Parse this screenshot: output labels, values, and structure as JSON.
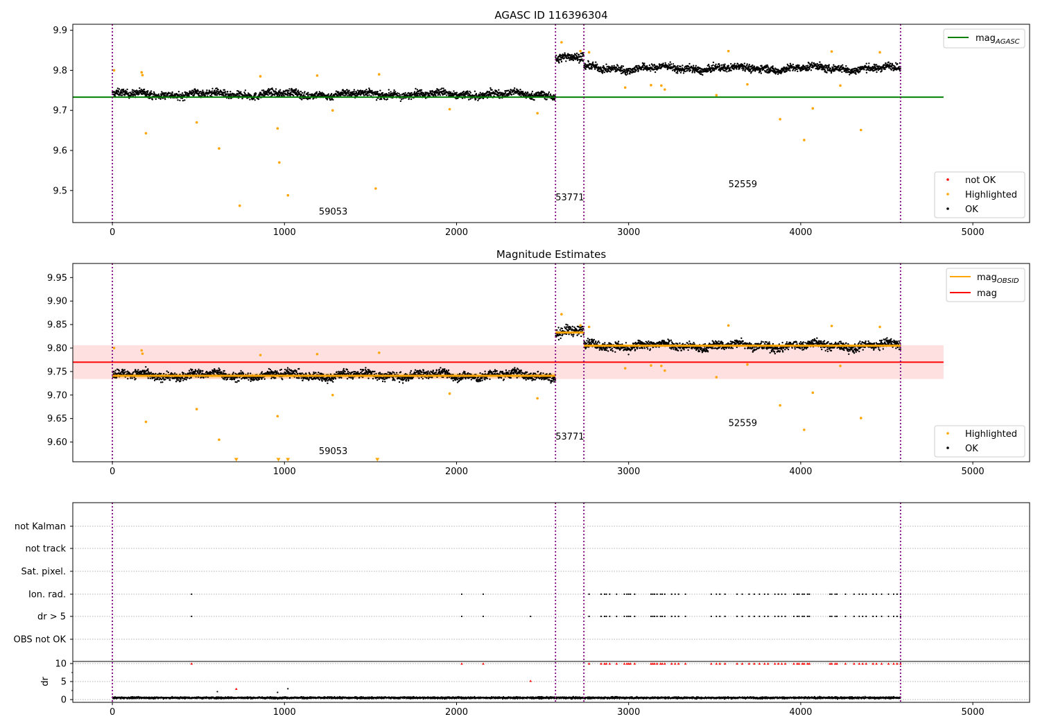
{
  "chart_data": [
    {
      "type": "scatter",
      "title": "AGASC ID 116396304",
      "xlim": [
        -230,
        5330
      ],
      "ylim": [
        9.42,
        9.915
      ],
      "xticks": [
        0,
        1000,
        2000,
        3000,
        4000,
        5000
      ],
      "xtick_labels": [
        "0",
        "1000",
        "2000",
        "3000",
        "4000",
        "5000"
      ],
      "yticks": [
        9.5,
        9.6,
        9.7,
        9.8,
        9.9
      ],
      "ytick_labels": [
        "9.5",
        "9.6",
        "9.7",
        "9.8",
        "9.9"
      ],
      "obsid_boundaries": [
        0,
        2575,
        2740,
        4580
      ],
      "annotations": [
        {
          "text": "59053",
          "x": 1200,
          "y": 9.44
        },
        {
          "text": "53771",
          "x": 2575,
          "y": 9.475
        },
        {
          "text": "52559",
          "x": 3580,
          "y": 9.508
        }
      ],
      "lines": [
        {
          "name": "mag",
          "subscript": "AGASC",
          "color": "#008000",
          "segments": [
            {
              "x": [
                -230,
                4830
              ],
              "y": 9.733
            }
          ]
        }
      ],
      "scatter_legend": [
        {
          "name": "not OK",
          "color": "#ff0000"
        },
        {
          "name": "Highlighted",
          "color": "#ffa500"
        },
        {
          "name": "OK",
          "color": "#000000"
        }
      ],
      "ok_series": {
        "color": "#000000",
        "segments": [
          {
            "x0": 0,
            "x1": 2575,
            "y": 9.74,
            "spread": 0.012
          },
          {
            "x0": 2575,
            "x1": 2740,
            "y": 9.832,
            "spread": 0.014
          },
          {
            "x0": 2740,
            "x1": 4580,
            "y": 9.805,
            "spread": 0.012
          }
        ]
      },
      "highlighted_points": {
        "color": "#ffa500",
        "x": [
          10,
          170,
          175,
          195,
          490,
          620,
          740,
          860,
          960,
          970,
          1020,
          1190,
          1280,
          1530,
          1550,
          1960,
          2470,
          2610,
          2720,
          2770,
          2980,
          3130,
          3190,
          3210,
          3510,
          3580,
          3690,
          3880,
          4020,
          4070,
          4180,
          4230,
          4350,
          4460
        ],
        "y": [
          9.8,
          9.795,
          9.788,
          9.643,
          9.67,
          9.605,
          9.462,
          9.785,
          9.655,
          9.57,
          9.488,
          9.787,
          9.7,
          9.505,
          9.79,
          9.703,
          9.693,
          9.87,
          9.848,
          9.845,
          9.757,
          9.763,
          9.762,
          9.752,
          9.738,
          9.848,
          9.765,
          9.678,
          9.626,
          9.705,
          9.847,
          9.762,
          9.651,
          9.845
        ]
      }
    },
    {
      "type": "scatter",
      "title": "Magnitude Estimates",
      "xlim": [
        -230,
        5330
      ],
      "ylim": [
        9.558,
        9.98
      ],
      "xticks": [
        0,
        1000,
        2000,
        3000,
        4000,
        5000
      ],
      "xtick_labels": [
        "0",
        "1000",
        "2000",
        "3000",
        "4000",
        "5000"
      ],
      "yticks": [
        9.6,
        9.65,
        9.7,
        9.75,
        9.8,
        9.85,
        9.9,
        9.95
      ],
      "ytick_labels": [
        "9.60",
        "9.65",
        "9.70",
        "9.75",
        "9.80",
        "9.85",
        "9.90",
        "9.95"
      ],
      "obsid_boundaries": [
        0,
        2575,
        2740,
        4580
      ],
      "annotations": [
        {
          "text": "59053",
          "x": 1200,
          "y": 9.574
        },
        {
          "text": "53771",
          "x": 2575,
          "y": 9.605
        },
        {
          "text": "52559",
          "x": 3580,
          "y": 9.634
        }
      ],
      "bands": [
        {
          "x": [
            -230,
            4830
          ],
          "y": [
            9.734,
            9.806
          ],
          "color": "#ff0000",
          "opacity": 0.12
        },
        {
          "x": [
            0,
            2575
          ],
          "y": [
            9.735,
            9.747
          ],
          "color": "#ffa500",
          "opacity": 0.22
        }
      ],
      "lines": [
        {
          "name": "mag",
          "subscript": "OBSID",
          "color": "#ffa500",
          "segments": [
            {
              "x": [
                0,
                2575
              ],
              "y": 9.741
            },
            {
              "x": [
                2575,
                2740
              ],
              "y": 9.833
            },
            {
              "x": [
                2740,
                4580
              ],
              "y": 9.805
            }
          ]
        },
        {
          "name": "mag",
          "subscript": "",
          "color": "#ff0000",
          "segments": [
            {
              "x": [
                -230,
                4830
              ],
              "y": 9.77
            }
          ]
        }
      ],
      "scatter_legend": [
        {
          "name": "Highlighted",
          "color": "#ffa500"
        },
        {
          "name": "OK",
          "color": "#000000"
        }
      ],
      "ok_series": {
        "color": "#000000",
        "segments": [
          {
            "x0": 0,
            "x1": 2575,
            "y": 9.742,
            "spread": 0.012
          },
          {
            "x0": 2575,
            "x1": 2740,
            "y": 9.835,
            "spread": 0.014
          },
          {
            "x0": 2740,
            "x1": 4580,
            "y": 9.805,
            "spread": 0.012
          }
        ]
      },
      "highlighted_points": {
        "color": "#ffa500",
        "x": [
          10,
          170,
          175,
          195,
          490,
          620,
          860,
          960,
          1190,
          1280,
          1550,
          1960,
          2470,
          2610,
          2720,
          2770,
          2980,
          3130,
          3190,
          3210,
          3510,
          3580,
          3690,
          3880,
          4020,
          4070,
          4180,
          4230,
          4350,
          4460
        ],
        "y": [
          9.8,
          9.795,
          9.788,
          9.643,
          9.67,
          9.605,
          9.785,
          9.655,
          9.787,
          9.7,
          9.79,
          9.703,
          9.693,
          9.872,
          9.848,
          9.845,
          9.757,
          9.763,
          9.762,
          9.752,
          9.738,
          9.848,
          9.765,
          9.678,
          9.626,
          9.705,
          9.847,
          9.762,
          9.651,
          9.845
        ]
      },
      "clipped_points": {
        "color": "#ffa500",
        "x": [
          720,
          965,
          1020,
          1540
        ]
      }
    },
    {
      "type": "scatter",
      "xlim": [
        -230,
        5330
      ],
      "ylim": [
        -0.5,
        11
      ],
      "xticks": [
        0,
        1000,
        2000,
        3000,
        4000,
        5000
      ],
      "xtick_labels": [
        "0",
        "1000",
        "2000",
        "3000",
        "4000",
        "5000"
      ],
      "obsid_boundaries": [
        0,
        2575,
        2740,
        4580
      ],
      "flag_labels": [
        "not Kalman",
        "not track",
        "Sat. pixel.",
        "Ion. rad.",
        "dr > 5",
        "OBS not OK"
      ],
      "ylabel": "dr",
      "yticks": [
        0,
        5,
        10
      ],
      "ytick_labels": [
        "0",
        "5",
        "10"
      ],
      "flag_points": {
        "Ion. rad.": [
          460,
          2030,
          2155,
          2770,
          2840,
          2860,
          2870,
          2890,
          2930,
          2975,
          2990,
          3000,
          3010,
          3035,
          3130,
          3140,
          3150,
          3165,
          3185,
          3195,
          3210,
          3250,
          3270,
          3290,
          3330,
          3480,
          3510,
          3530,
          3560,
          3630,
          3660,
          3700,
          3730,
          3760,
          3790,
          3810,
          3850,
          3870,
          3890,
          3910,
          3960,
          3980,
          3990,
          4010,
          4020,
          4040,
          4050,
          4170,
          4180,
          4200,
          4210,
          4260,
          4310,
          4340,
          4360,
          4380,
          4420,
          4440,
          4470,
          4510,
          4540,
          4560,
          4580
        ],
        "dr > 5": [
          460,
          2030,
          2155,
          2430,
          2770,
          2840,
          2860,
          2870,
          2890,
          2930,
          2975,
          2990,
          3000,
          3010,
          3035,
          3130,
          3140,
          3150,
          3165,
          3185,
          3195,
          3210,
          3250,
          3270,
          3290,
          3330,
          3480,
          3510,
          3530,
          3560,
          3630,
          3660,
          3700,
          3730,
          3760,
          3790,
          3810,
          3850,
          3870,
          3890,
          3910,
          3960,
          3980,
          3990,
          4010,
          4020,
          4040,
          4050,
          4170,
          4180,
          4200,
          4210,
          4260,
          4310,
          4340,
          4360,
          4380,
          4420,
          4440,
          4470,
          4510,
          4540,
          4560,
          4580
        ]
      },
      "dr_red_points": {
        "color": "#ff0000",
        "x": [
          460,
          720,
          2030,
          2155,
          2430,
          2770,
          2840,
          2860,
          2870,
          2890,
          2930,
          2975,
          2990,
          3000,
          3010,
          3035,
          3130,
          3140,
          3150,
          3165,
          3185,
          3195,
          3210,
          3250,
          3270,
          3290,
          3330,
          3480,
          3510,
          3530,
          3560,
          3630,
          3660,
          3700,
          3730,
          3760,
          3790,
          3810,
          3850,
          3870,
          3890,
          3910,
          3960,
          3980,
          3990,
          4010,
          4020,
          4040,
          4050,
          4170,
          4180,
          4200,
          4210,
          4260,
          4310,
          4340,
          4360,
          4380,
          4420,
          4440,
          4470,
          4510,
          4540,
          4560,
          4580
        ],
        "y": [
          10,
          3,
          10,
          10,
          5.2,
          10,
          10,
          10,
          10,
          10,
          10,
          10,
          10,
          10,
          10,
          10,
          10,
          10,
          10,
          10,
          10,
          10,
          10,
          10,
          10,
          10,
          10,
          10,
          10,
          10,
          10,
          10,
          10,
          10,
          10,
          10,
          10,
          10,
          10,
          10,
          10,
          10,
          10,
          10,
          10,
          10,
          10,
          10,
          10,
          10,
          10,
          10,
          10,
          10,
          10,
          10,
          10,
          10,
          10,
          10,
          10,
          10,
          10,
          10,
          10
        ]
      },
      "dr_black_points": {
        "color": "#000000",
        "x": [
          610,
          960,
          1020
        ],
        "y": [
          2.2,
          2.0,
          3.0
        ]
      },
      "dr_baseline": {
        "color": "#000000",
        "x0": 0,
        "x1": 4580,
        "y": 0.5,
        "spread": 0.3
      }
    }
  ]
}
